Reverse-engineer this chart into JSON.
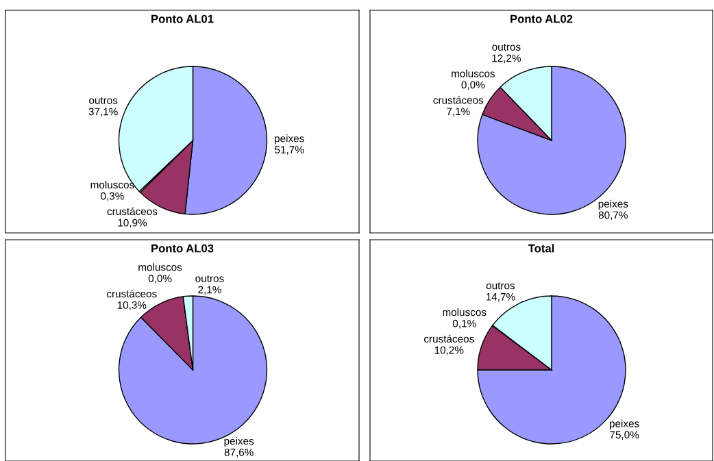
{
  "chart_data": [
    {
      "type": "pie",
      "title": "Ponto AL01",
      "categories": [
        "peixes",
        "crustáceos",
        "moluscos",
        "outros"
      ],
      "values": [
        51.7,
        10.9,
        0.3,
        37.1
      ],
      "value_labels": [
        "51,7%",
        "10,9%",
        "0,3%",
        "37,1%"
      ],
      "colors": [
        "#9999ff",
        "#993366",
        "#ffffcc",
        "#ccffff"
      ]
    },
    {
      "type": "pie",
      "title": "Ponto AL02",
      "categories": [
        "peixes",
        "crustáceos",
        "moluscos",
        "outros"
      ],
      "values": [
        80.7,
        7.1,
        0.0,
        12.2
      ],
      "value_labels": [
        "80,7%",
        "7,1%",
        "0,0%",
        "12,2%"
      ],
      "colors": [
        "#9999ff",
        "#993366",
        "#ffffcc",
        "#ccffff"
      ]
    },
    {
      "type": "pie",
      "title": "Ponto AL03",
      "categories": [
        "peixes",
        "crustáceos",
        "moluscos",
        "outros"
      ],
      "values": [
        87.6,
        10.3,
        0.0,
        2.1
      ],
      "value_labels": [
        "87,6%",
        "10,3%",
        "0,0%",
        "2,1%"
      ],
      "colors": [
        "#9999ff",
        "#993366",
        "#ffffcc",
        "#ccffff"
      ]
    },
    {
      "type": "pie",
      "title": "Total",
      "categories": [
        "peixes",
        "crustáceos",
        "moluscos",
        "outros"
      ],
      "values": [
        75.0,
        10.2,
        0.1,
        14.7
      ],
      "value_labels": [
        "75,0%",
        "10,2%",
        "0,1%",
        "14,7%"
      ],
      "colors": [
        "#9999ff",
        "#993366",
        "#ffffcc",
        "#ccffff"
      ]
    }
  ]
}
